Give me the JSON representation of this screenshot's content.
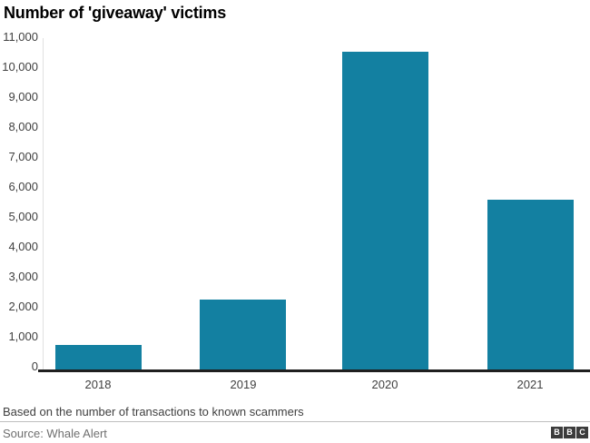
{
  "chart": {
    "title": "Number of 'giveaway' victims",
    "footnote": "Based on the number of transactions to known scammers"
  },
  "chart_data": {
    "type": "bar",
    "title": "Number of 'giveaway' victims",
    "categories": [
      "2018",
      "2019",
      "2020",
      "2021"
    ],
    "values": [
      850,
      2350,
      10650,
      5700
    ],
    "xlabel": "",
    "ylabel": "",
    "ylim": [
      0,
      11000
    ],
    "ytick_step": 1000,
    "ytick_labels": [
      "0",
      "1,000",
      "2,000",
      "3,000",
      "4,000",
      "5,000",
      "6,000",
      "7,000",
      "8,000",
      "9,000",
      "10,000",
      "11,000"
    ],
    "bar_color": "#1380A1",
    "grid": false,
    "legend": false,
    "footnote": "Based on the number of transactions to known scammers"
  },
  "footer": {
    "source": "Source: Whale Alert",
    "logo_letters": [
      "B",
      "B",
      "C"
    ]
  }
}
